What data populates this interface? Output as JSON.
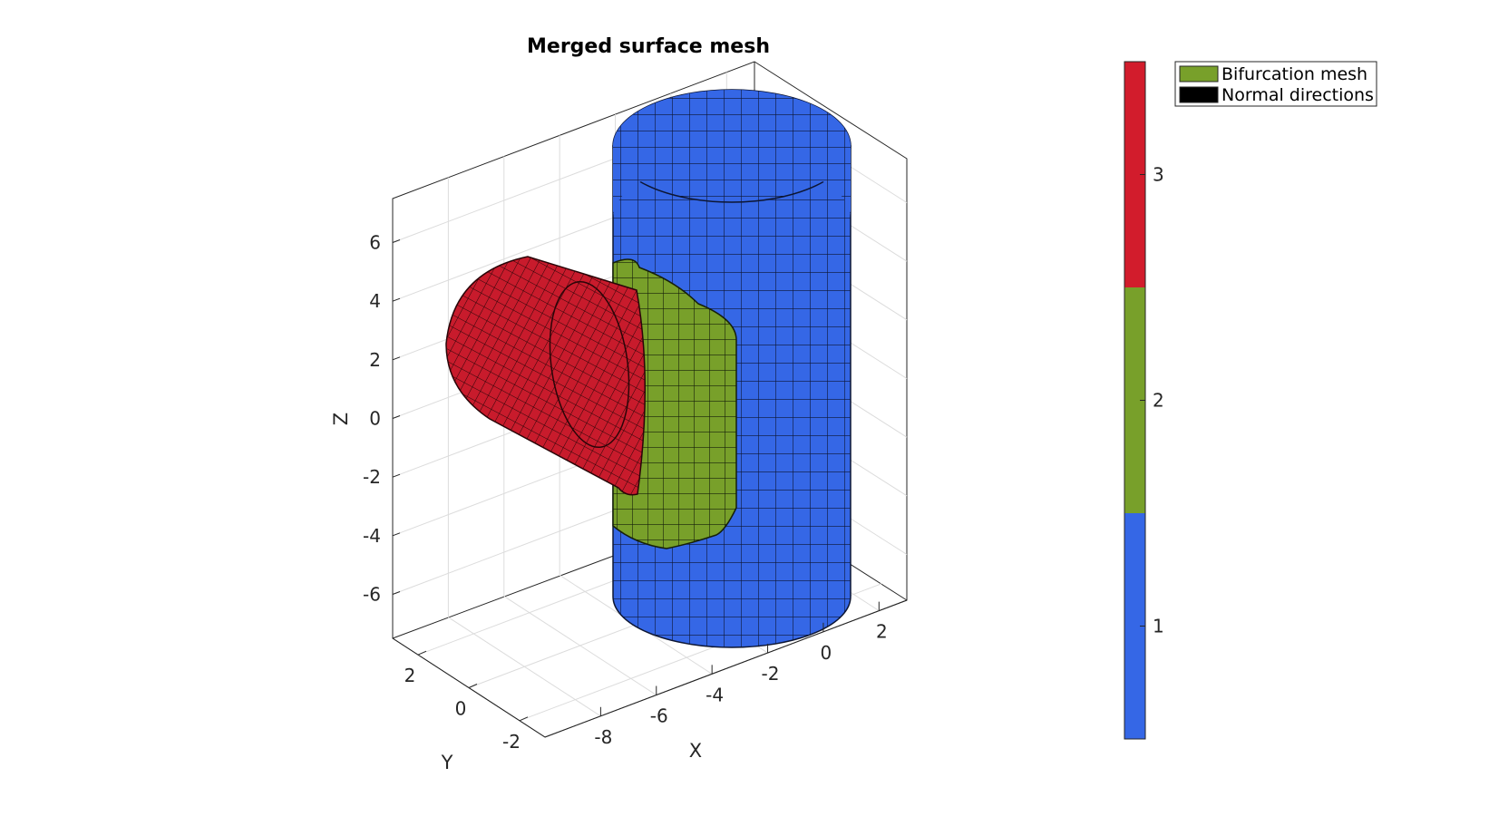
{
  "chart_data": {
    "type": "surface-mesh-3d",
    "title": "Merged surface mesh",
    "xlabel": "X",
    "ylabel": "Y",
    "zlabel": "Z",
    "x_ticks": [
      "-8",
      "-6",
      "-4",
      "-2",
      "0",
      "2"
    ],
    "y_ticks": [
      "2",
      "0",
      "-2"
    ],
    "z_ticks": [
      "6",
      "4",
      "2",
      "0",
      "-2",
      "-4",
      "-6"
    ],
    "xlim": [
      -10,
      3
    ],
    "ylim": [
      -3,
      3
    ],
    "zlim": [
      -7.5,
      7.5
    ],
    "grid": true,
    "regions": [
      {
        "label_value": 1,
        "color": "#3567e6"
      },
      {
        "label_value": 2,
        "color": "#78a02a"
      },
      {
        "label_value": 3,
        "color": "#d21c2c"
      }
    ],
    "colorbar": {
      "ticks": [
        "1",
        "2",
        "3"
      ],
      "range": [
        0.5,
        3.5
      ],
      "colors": [
        "#3567e6",
        "#78a02a",
        "#d21c2c"
      ]
    },
    "legend": {
      "placement": "top-right",
      "entries": [
        {
          "label": "Bifurcation mesh",
          "color": "#78a02a"
        },
        {
          "label": "Normal directions",
          "color": "#000000"
        }
      ]
    }
  }
}
